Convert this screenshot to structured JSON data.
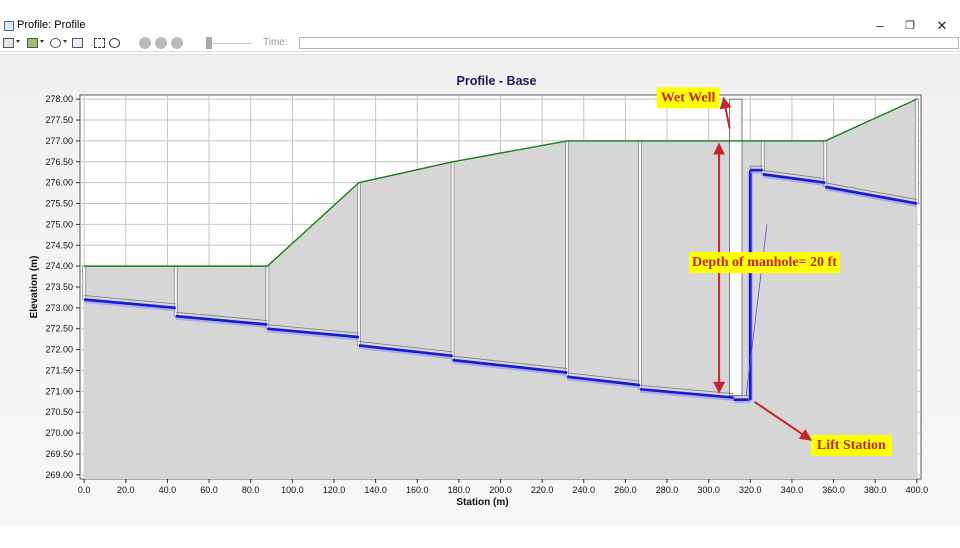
{
  "window": {
    "title": "Profile: Profile",
    "minimize_icon": "minimize-icon",
    "restore_icon": "restore-icon",
    "close_icon": "close-icon"
  },
  "toolbar": {
    "icons": [
      "layers-icon",
      "print-icon",
      "zoom-icon",
      "copy-icon",
      "zoom-extents-icon",
      "zoom-in-icon",
      "rewind-icon",
      "pause-icon",
      "play-icon"
    ],
    "time_label": "Time:",
    "time_value": ""
  },
  "chart_data": {
    "type": "line",
    "title": "Profile - Base",
    "xlabel": "Station (m)",
    "ylabel": "Elevation (m)",
    "xlim": [
      -2,
      402
    ],
    "ylim": [
      268.9,
      278.1
    ],
    "xticks": [
      0,
      20,
      40,
      60,
      80,
      100,
      120,
      140,
      160,
      180,
      200,
      220,
      240,
      260,
      280,
      300,
      320,
      340,
      360,
      380,
      400
    ],
    "xtick_labels": [
      "0.0",
      "20.0",
      "40.0",
      "60.0",
      "80.0",
      "100.0",
      "120.0",
      "140.0",
      "160.0",
      "180.0",
      "200.0",
      "220.0",
      "240.0",
      "260.0",
      "280.0",
      "300.0",
      "320.0",
      "340.0",
      "360.0",
      "380.0",
      "400.0"
    ],
    "yticks": [
      269,
      269.5,
      270,
      270.5,
      271,
      271.5,
      272,
      272.5,
      273,
      273.5,
      274,
      274.5,
      275,
      275.5,
      276,
      276.5,
      277,
      277.5,
      278
    ],
    "ytick_labels": [
      "269.00",
      "269.50",
      "270.00",
      "270.50",
      "271.00",
      "271.50",
      "272.00",
      "272.50",
      "273.00",
      "273.50",
      "274.00",
      "274.50",
      "275.00",
      "275.50",
      "276.00",
      "276.50",
      "277.00",
      "277.50",
      "278.00"
    ],
    "grid": true,
    "colors": {
      "ground": "#1e7b1e",
      "pipe": "#1a1acd",
      "pipe_glow": "#8f8fff",
      "manhole": "#8c8c8c",
      "fill": "#d6d6d6",
      "callout": "#c1272d",
      "callout_bg": "#ffff00"
    },
    "series": [
      {
        "name": "",
        "kind": "ground",
        "x": [
          0,
          44,
          88,
          132,
          177,
          232,
          267,
          312,
          326,
          356,
          400
        ],
        "y": [
          274.0,
          274.0,
          274.0,
          276.0,
          276.5,
          277.0,
          277.0,
          277.0,
          277.0,
          277.0,
          278.0
        ]
      },
      {
        "name": "",
        "kind": "pipe",
        "segments": [
          {
            "x": [
              0,
              44
            ],
            "y": [
              273.2,
              273.0
            ]
          },
          {
            "x": [
              44,
              88
            ],
            "y": [
              272.8,
              272.6
            ]
          },
          {
            "x": [
              88,
              132
            ],
            "y": [
              272.5,
              272.3
            ]
          },
          {
            "x": [
              132,
              177
            ],
            "y": [
              272.1,
              271.85
            ]
          },
          {
            "x": [
              177,
              232
            ],
            "y": [
              271.75,
              271.45
            ]
          },
          {
            "x": [
              232,
              267
            ],
            "y": [
              271.35,
              271.15
            ]
          },
          {
            "x": [
              267,
              312
            ],
            "y": [
              271.05,
              270.85
            ]
          },
          {
            "x": [
              312,
              320
            ],
            "y": [
              270.8,
              270.8
            ]
          },
          {
            "x": [
              320,
              320
            ],
            "y": [
              270.8,
              276.3
            ]
          },
          {
            "x": [
              320,
              326
            ],
            "y": [
              276.3,
              276.3
            ]
          },
          {
            "x": [
              326,
              356
            ],
            "y": [
              276.2,
              276.0
            ]
          },
          {
            "x": [
              356,
              400
            ],
            "y": [
              275.9,
              275.5
            ]
          }
        ]
      }
    ],
    "manholes": [
      {
        "x": 0,
        "top": 274.0,
        "invert": 273.2
      },
      {
        "x": 44,
        "top": 274.0,
        "invert": 272.8
      },
      {
        "x": 88,
        "top": 274.0,
        "invert": 272.5
      },
      {
        "x": 132,
        "top": 276.0,
        "invert": 272.1
      },
      {
        "x": 177,
        "top": 276.5,
        "invert": 271.75
      },
      {
        "x": 232,
        "top": 277.0,
        "invert": 271.35
      },
      {
        "x": 267,
        "top": 277.0,
        "invert": 271.05
      },
      {
        "x": 326,
        "top": 277.0,
        "invert": 276.2
      },
      {
        "x": 356,
        "top": 277.0,
        "invert": 275.9
      },
      {
        "x": 400,
        "top": 278.0,
        "invert": 275.5
      }
    ],
    "wet_well": {
      "x0": 310,
      "x1": 316,
      "top": 278.0,
      "bottom": 270.9
    },
    "annotations": [
      {
        "text": "Wet Well",
        "target": [
          312,
          277.3
        ],
        "label_at": [
          277,
          277.95
        ]
      },
      {
        "text": "Depth of manhole= 20 ft",
        "arrow_x": 305,
        "from_y": 277.0,
        "to_y": 270.9,
        "label_at": [
          292,
          274.0
        ]
      },
      {
        "text": "Lift Station",
        "target": [
          322,
          270.75
        ],
        "label_at": [
          352,
          269.62
        ]
      }
    ]
  }
}
